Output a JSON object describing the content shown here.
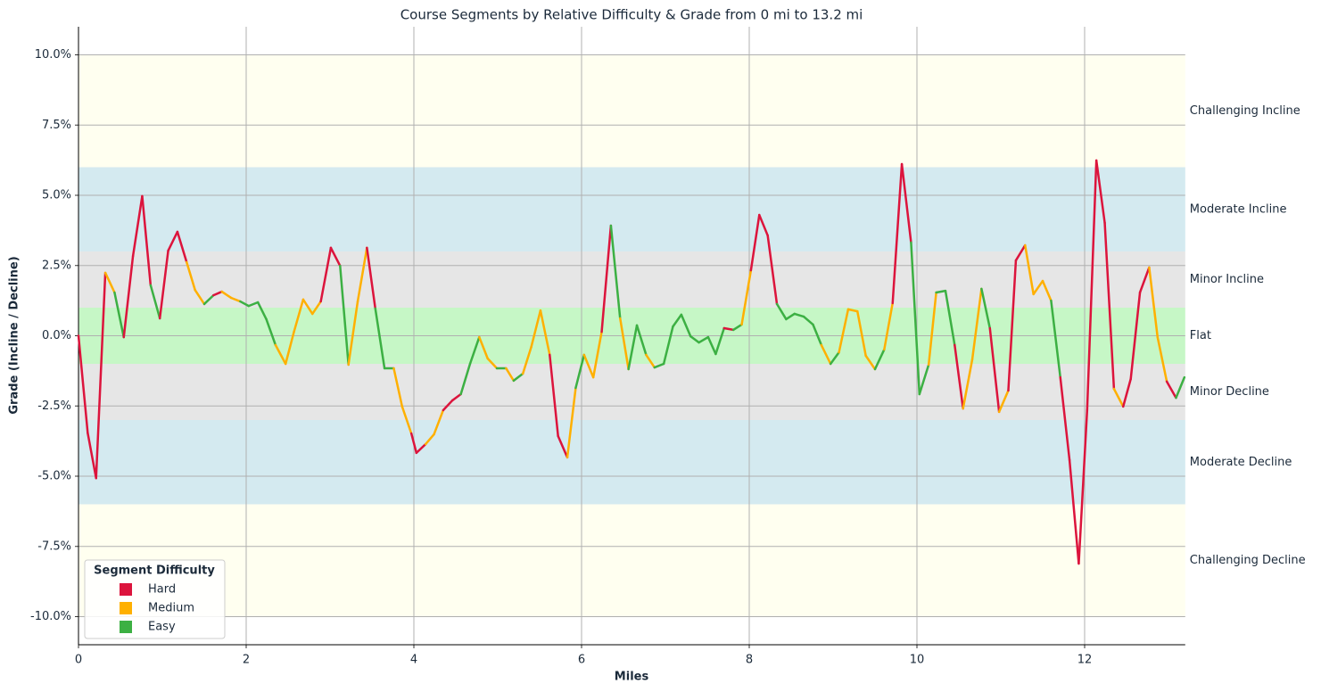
{
  "chart_data": {
    "type": "line",
    "title": "Course Segments by Relative Difficulty & Grade from 0 mi to 13.2 mi",
    "xlabel": "Miles",
    "ylabel": "Grade (Incline / Decline)",
    "x": [
      0,
      0.11,
      0.21,
      0.32,
      0.43,
      0.54,
      0.65,
      0.76,
      0.86,
      0.97,
      1.07,
      1.18,
      1.29,
      1.39,
      1.5,
      1.61,
      1.71,
      1.82,
      1.93,
      2.03,
      2.14,
      2.24,
      2.35,
      2.47,
      2.57,
      2.68,
      2.79,
      2.89,
      3.01,
      3.12,
      3.22,
      3.33,
      3.44,
      3.54,
      3.65,
      3.76,
      3.86,
      3.97,
      4.03,
      4.14,
      4.24,
      4.35,
      4.46,
      4.56,
      4.67,
      4.78,
      4.88,
      4.99,
      5.1,
      5.19,
      5.3,
      5.4,
      5.51,
      5.62,
      5.72,
      5.83,
      5.93,
      6.03,
      6.14,
      6.24,
      6.35,
      6.46,
      6.56,
      6.66,
      6.77,
      6.87,
      6.98,
      7.09,
      7.19,
      7.3,
      7.4,
      7.51,
      7.6,
      7.7,
      7.81,
      7.91,
      8.02,
      8.12,
      8.22,
      8.33,
      8.44,
      8.54,
      8.65,
      8.76,
      8.86,
      8.97,
      9.07,
      9.18,
      9.29,
      9.39,
      9.5,
      9.61,
      9.71,
      9.82,
      9.93,
      10.03,
      10.14,
      10.23,
      10.34,
      10.45,
      10.55,
      10.66,
      10.77,
      10.87,
      10.98,
      11.09,
      11.18,
      11.29,
      11.39,
      11.5,
      11.6,
      11.71,
      11.82,
      11.93,
      12.03,
      12.14,
      12.24,
      12.35,
      12.46,
      12.55,
      12.66,
      12.77,
      12.87,
      12.98,
      13.09,
      13.19
    ],
    "values": [
      0,
      -3.46,
      -5.07,
      2.24,
      1.54,
      -0.05,
      2.84,
      4.97,
      1.8,
      0.62,
      3.03,
      3.7,
      2.62,
      1.63,
      1.13,
      1.44,
      1.57,
      1.35,
      1.22,
      1.06,
      1.19,
      0.59,
      -0.33,
      -1.0,
      0.14,
      1.29,
      0.78,
      1.22,
      3.13,
      2.49,
      -1.03,
      1.22,
      3.13,
      0.97,
      -1.16,
      -1.16,
      -2.52,
      -3.48,
      -4.17,
      -3.86,
      -3.51,
      -2.65,
      -2.3,
      -2.08,
      -1.0,
      -0.05,
      -0.81,
      -1.16,
      -1.16,
      -1.6,
      -1.35,
      -0.4,
      0.9,
      -0.68,
      -3.57,
      -4.33,
      -1.86,
      -0.68,
      -1.48,
      0.14,
      3.92,
      0.62,
      -1.19,
      0.37,
      -0.68,
      -1.13,
      -1.0,
      0.33,
      0.75,
      -0.02,
      -0.24,
      -0.05,
      -0.65,
      0.27,
      0.21,
      0.4,
      2.33,
      4.3,
      3.57,
      1.13,
      0.59,
      0.78,
      0.68,
      0.4,
      -0.33,
      -1.0,
      -0.59,
      0.94,
      0.87,
      -0.71,
      -1.19,
      -0.49,
      1.16,
      6.11,
      3.32,
      -2.08,
      -1.03,
      1.54,
      1.6,
      -0.33,
      -2.59,
      -0.84,
      1.67,
      0.27,
      -2.71,
      -1.95,
      2.68,
      3.22,
      1.48,
      1.95,
      1.25,
      -1.48,
      -4.43,
      -8.11,
      -2.65,
      6.24,
      4.02,
      -1.89,
      -2.52,
      -1.54,
      1.54,
      2.43,
      -0.05,
      -1.63,
      -2.21,
      -1.48
    ],
    "segment_difficulty": [
      null,
      "Hard",
      "Hard",
      "Hard",
      "Medium",
      "Easy",
      "Hard",
      "Hard",
      "Hard",
      "Easy",
      "Hard",
      "Hard",
      "Hard",
      "Medium",
      "Medium",
      "Easy",
      "Hard",
      "Medium",
      "Medium",
      "Easy",
      "Easy",
      "Easy",
      "Easy",
      "Medium",
      "Medium",
      "Medium",
      "Medium",
      "Medium",
      "Hard",
      "Hard",
      "Easy",
      "Medium",
      "Medium",
      "Hard",
      "Easy",
      "Easy",
      "Medium",
      "Medium",
      "Hard",
      "Hard",
      "Medium",
      "Medium",
      "Hard",
      "Hard",
      "Easy",
      "Easy",
      "Medium",
      "Medium",
      "Easy",
      "Medium",
      "Easy",
      "Medium",
      "Medium",
      "Medium",
      "Hard",
      "Hard",
      "Medium",
      "Easy",
      "Medium",
      "Medium",
      "Hard",
      "Easy",
      "Medium",
      "Easy",
      "Easy",
      "Medium",
      "Easy",
      "Easy",
      "Easy",
      "Easy",
      "Easy",
      "Easy",
      "Easy",
      "Easy",
      "Hard",
      "Easy",
      "Medium",
      "Hard",
      "Hard",
      "Hard",
      "Easy",
      "Easy",
      "Easy",
      "Easy",
      "Easy",
      "Medium",
      "Easy",
      "Medium",
      "Medium",
      "Medium",
      "Medium",
      "Easy",
      "Medium",
      "Hard",
      "Hard",
      "Easy",
      "Easy",
      "Medium",
      "Easy",
      "Easy",
      "Hard",
      "Medium",
      "Medium",
      "Easy",
      "Hard",
      "Medium",
      "Hard",
      "Hard",
      "Medium",
      "Medium",
      "Medium",
      "Easy",
      "Hard",
      "Hard",
      "Hard",
      "Hard",
      "Hard",
      "Hard",
      "Medium",
      "Hard",
      "Hard",
      "Hard",
      "Medium",
      "Medium",
      "Hard",
      "Easy"
    ],
    "legend": {
      "title": "Segment Difficulty",
      "position": "lower left",
      "items": [
        {
          "name": "Hard",
          "color": "#dc143c"
        },
        {
          "name": "Medium",
          "color": "#ffb000"
        },
        {
          "name": "Easy",
          "color": "#3cb043"
        }
      ]
    },
    "bands": [
      {
        "name": "Challenging Incline",
        "range": [
          6,
          10
        ],
        "color": "#fffff0"
      },
      {
        "name": "Moderate Incline",
        "range": [
          3,
          6
        ],
        "color": "#d4eaf0"
      },
      {
        "name": "Minor Incline",
        "range": [
          1,
          3
        ],
        "color": "#e6e6e6"
      },
      {
        "name": "Flat",
        "range": [
          -1,
          1
        ],
        "color": "#c6f7c6"
      },
      {
        "name": "Minor Decline",
        "range": [
          -3,
          -1
        ],
        "color": "#e6e6e6"
      },
      {
        "name": "Moderate Decline",
        "range": [
          -6,
          -3
        ],
        "color": "#d4eaf0"
      },
      {
        "name": "Challenging Decline",
        "range": [
          -10,
          -6
        ],
        "color": "#fffff0"
      }
    ],
    "xlim": [
      0,
      13.2
    ],
    "ylim": [
      -11,
      11
    ],
    "xticks": [
      0,
      2,
      4,
      6,
      8,
      10,
      12
    ],
    "yticks": [
      {
        "value": -10,
        "label": "-10.0%"
      },
      {
        "value": -7.5,
        "label": "-7.5%"
      },
      {
        "value": -5,
        "label": "-5.0%"
      },
      {
        "value": -2.5,
        "label": "-2.5%"
      },
      {
        "value": 0,
        "label": "0.0%"
      },
      {
        "value": 2.5,
        "label": "2.5%"
      },
      {
        "value": 5,
        "label": "5.0%"
      },
      {
        "value": 7.5,
        "label": "7.5%"
      },
      {
        "value": 10,
        "label": "10.0%"
      }
    ],
    "grid": true
  }
}
